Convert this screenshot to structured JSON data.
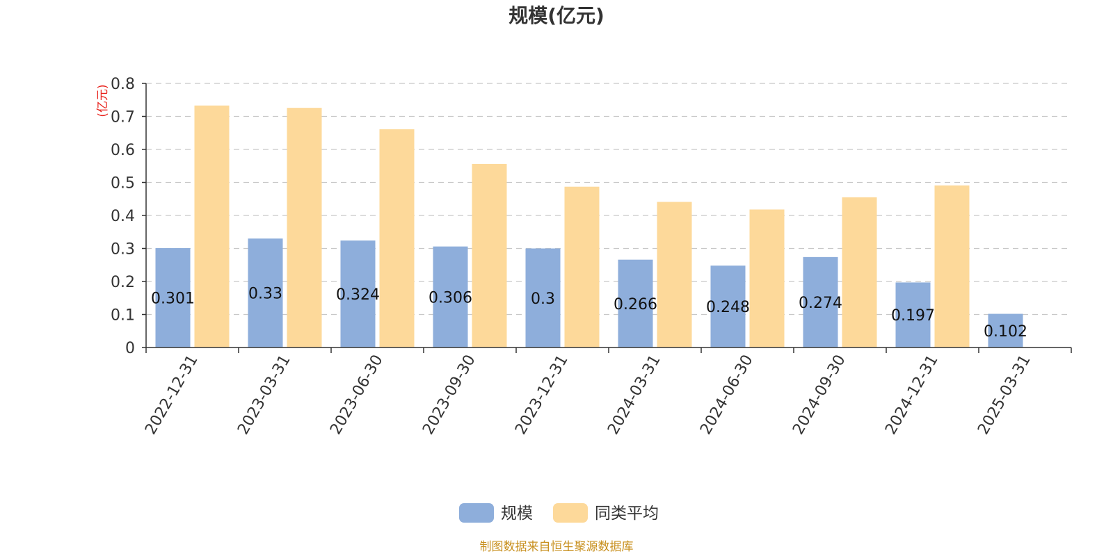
{
  "chart_data": {
    "type": "bar",
    "title": "规模(亿元)",
    "ylabel": "(亿元)",
    "xlabel": "",
    "categories": [
      "2022-12-31",
      "2023-03-31",
      "2023-06-30",
      "2023-09-30",
      "2023-12-31",
      "2024-03-31",
      "2024-06-30",
      "2024-09-30",
      "2024-12-31",
      "2025-03-31"
    ],
    "ylim": [
      0,
      0.8
    ],
    "yticks": [
      "0",
      "0.1",
      "0.2",
      "0.3",
      "0.4",
      "0.5",
      "0.6",
      "0.7",
      "0.8"
    ],
    "grid": true,
    "legend_position": "bottom",
    "series": [
      {
        "name": "规模",
        "color": "#8eaedb",
        "values": [
          0.301,
          0.33,
          0.324,
          0.306,
          0.3,
          0.266,
          0.248,
          0.274,
          0.197,
          0.102
        ],
        "labels": [
          "0.301",
          "0.33",
          "0.324",
          "0.306",
          "0.3",
          "0.266",
          "0.248",
          "0.274",
          "0.197",
          "0.102"
        ]
      },
      {
        "name": "同类平均",
        "color": "#fdd99a",
        "values": [
          0.733,
          0.726,
          0.661,
          0.556,
          0.487,
          0.441,
          0.418,
          0.455,
          0.491,
          null
        ]
      }
    ]
  },
  "source_note": "制图数据来自恒生聚源数据库"
}
